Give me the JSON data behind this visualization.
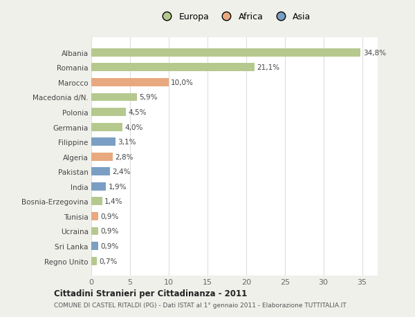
{
  "countries": [
    "Albania",
    "Romania",
    "Marocco",
    "Macedonia d/N.",
    "Polonia",
    "Germania",
    "Filippine",
    "Algeria",
    "Pakistan",
    "India",
    "Bosnia-Erzegovina",
    "Tunisia",
    "Ucraina",
    "Sri Lanka",
    "Regno Unito"
  ],
  "values": [
    34.8,
    21.1,
    10.0,
    5.9,
    4.5,
    4.0,
    3.1,
    2.8,
    2.4,
    1.9,
    1.4,
    0.9,
    0.9,
    0.9,
    0.7
  ],
  "labels": [
    "34,8%",
    "21,1%",
    "10,0%",
    "5,9%",
    "4,5%",
    "4,0%",
    "3,1%",
    "2,8%",
    "2,4%",
    "1,9%",
    "1,4%",
    "0,9%",
    "0,9%",
    "0,9%",
    "0,7%"
  ],
  "continents": [
    "Europa",
    "Europa",
    "Africa",
    "Europa",
    "Europa",
    "Europa",
    "Asia",
    "Africa",
    "Asia",
    "Asia",
    "Europa",
    "Africa",
    "Europa",
    "Asia",
    "Europa"
  ],
  "colors": {
    "Europa": "#b5c98e",
    "Africa": "#e8a97e",
    "Asia": "#7b9fc4"
  },
  "legend_labels": [
    "Europa",
    "Africa",
    "Asia"
  ],
  "legend_colors": [
    "#b5c98e",
    "#e8a97e",
    "#7b9fc4"
  ],
  "title": "Cittadini Stranieri per Cittadinanza - 2011",
  "subtitle": "COMUNE DI CASTEL RITALDI (PG) - Dati ISTAT al 1° gennaio 2011 - Elaborazione TUTTITALIA.IT",
  "xlim": [
    0,
    37
  ],
  "xticks": [
    0,
    5,
    10,
    15,
    20,
    25,
    30,
    35
  ],
  "background_color": "#f0f0eb",
  "plot_background": "#ffffff",
  "grid_color": "#dddddd"
}
